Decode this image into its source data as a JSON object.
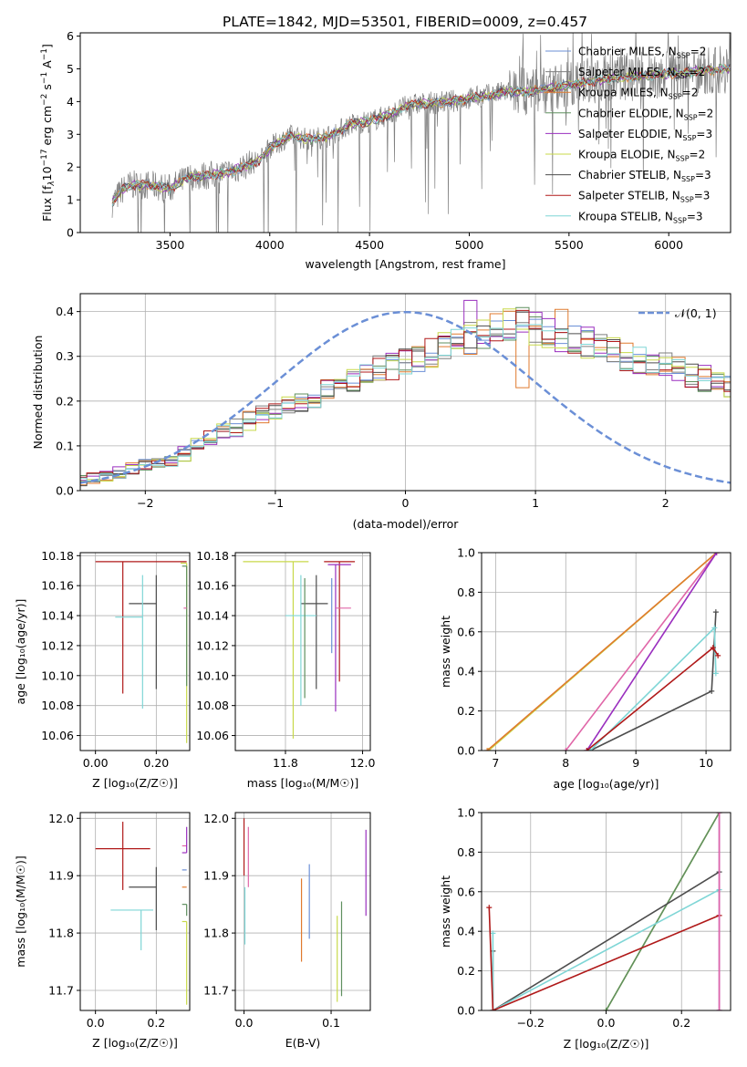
{
  "figure": {
    "title": "PLATE=1842, MJD=53501, FIBERID=0009, z=0.457"
  },
  "colors": {
    "Chabrier MILES": "#6b8fd6",
    "Salpeter MILES": "#7f7f7f",
    "Kroupa MILES": "#e07a2e",
    "Chabrier ELODIE": "#5f8f5f",
    "Salpeter ELODIE": "#9a2fbf",
    "Kroupa ELODIE": "#c8d94a",
    "Chabrier STELIB": "#4d4d4d",
    "Salpeter STELIB": "#b01919",
    "Kroupa STELIB": "#7fd6d6",
    "data": "#808080",
    "pink": "#e066a8"
  },
  "chart_data": [
    {
      "id": "spectrum",
      "type": "line",
      "title": "PLATE=1842, MJD=53501, FIBERID=0009, z=0.457",
      "xlabel": "wavelength [Angstrom, rest frame]",
      "ylabel_parts": [
        "Flux [f",
        "λ",
        "10",
        "−17",
        " erg cm",
        "−2",
        " s",
        "−1",
        " A",
        "−1",
        "]"
      ],
      "xlim": [
        3050,
        6310
      ],
      "ylim": [
        0,
        6.1
      ],
      "xticks": [
        3500,
        4000,
        4500,
        5000,
        5500,
        6000
      ],
      "yticks": [
        0,
        1,
        2,
        3,
        4,
        5,
        6
      ],
      "legend": "top-right",
      "data_start": 3210,
      "data_end": 6310,
      "continuum": [
        [
          3210,
          0.9
        ],
        [
          3260,
          1.3
        ],
        [
          3300,
          1.45
        ],
        [
          3400,
          1.45
        ],
        [
          3500,
          1.35
        ],
        [
          3600,
          1.7
        ],
        [
          3700,
          1.75
        ],
        [
          3800,
          1.85
        ],
        [
          3900,
          2.1
        ],
        [
          3950,
          2.2
        ],
        [
          4000,
          2.6
        ],
        [
          4100,
          2.95
        ],
        [
          4200,
          2.85
        ],
        [
          4300,
          2.95
        ],
        [
          4400,
          3.3
        ],
        [
          4500,
          3.4
        ],
        [
          4600,
          3.6
        ],
        [
          4700,
          3.9
        ],
        [
          4800,
          3.95
        ],
        [
          4900,
          4.0
        ],
        [
          5000,
          4.1
        ],
        [
          5100,
          4.2
        ],
        [
          5200,
          4.3
        ],
        [
          5300,
          4.3
        ],
        [
          5400,
          4.4
        ],
        [
          5500,
          4.5
        ],
        [
          5600,
          4.6
        ],
        [
          5700,
          4.7
        ],
        [
          5800,
          4.75
        ],
        [
          5900,
          4.8
        ],
        [
          6000,
          4.85
        ],
        [
          6100,
          4.9
        ],
        [
          6200,
          4.95
        ],
        [
          6300,
          5.0
        ]
      ],
      "series": [
        {
          "name": "Chabrier MILES",
          "label_sub": "SSP",
          "n": "2"
        },
        {
          "name": "Salpeter MILES",
          "label_sub": "SSP",
          "n": "2"
        },
        {
          "name": "Kroupa MILES",
          "label_sub": "SSP",
          "n": "2"
        },
        {
          "name": "Chabrier ELODIE",
          "label_sub": "SSP",
          "n": "2"
        },
        {
          "name": "Salpeter ELODIE",
          "label_sub": "SSP",
          "n": "3"
        },
        {
          "name": "Kroupa ELODIE",
          "label_sub": "SSP",
          "n": "2"
        },
        {
          "name": "Chabrier STELIB",
          "label_sub": "SSP",
          "n": "3"
        },
        {
          "name": "Salpeter STELIB",
          "label_sub": "SSP",
          "n": "3"
        },
        {
          "name": "Kroupa STELIB",
          "label_sub": "SSP",
          "n": "3"
        }
      ]
    },
    {
      "id": "residuals",
      "type": "histogram",
      "xlabel": "(data-model)/error",
      "ylabel": "Normed distribution",
      "xlim": [
        -2.5,
        2.5
      ],
      "ylim": [
        0,
        0.44
      ],
      "xticks": [
        -2,
        -1,
        0,
        1,
        2
      ],
      "yticks": [
        0,
        0.1,
        0.2,
        0.3,
        0.4
      ],
      "legend": "top-right",
      "reference_curve": {
        "label": "𝒩(0, 1)",
        "mean": 0,
        "sigma": 1
      },
      "bin_width": 0.1,
      "base_profile": [
        0.022,
        0.028,
        0.033,
        0.04,
        0.05,
        0.058,
        0.062,
        0.07,
        0.082,
        0.1,
        0.115,
        0.13,
        0.14,
        0.155,
        0.17,
        0.18,
        0.19,
        0.195,
        0.21,
        0.225,
        0.24,
        0.25,
        0.26,
        0.27,
        0.28,
        0.29,
        0.3,
        0.31,
        0.32,
        0.33,
        0.34,
        0.35,
        0.36,
        0.37,
        0.37,
        0.36,
        0.35,
        0.345,
        0.34,
        0.33,
        0.32,
        0.31,
        0.3,
        0.29,
        0.285,
        0.28,
        0.27,
        0.26,
        0.25,
        0.24,
        0.23,
        0.22,
        0.21,
        0.2,
        0.19,
        0.18,
        0.17,
        0.16,
        0.15,
        0.14,
        0.13,
        0.12,
        0.11,
        0.1,
        0.09,
        0.082,
        0.075,
        0.068,
        0.062,
        0.056,
        0.05,
        0.045,
        0.04,
        0.036
      ]
    },
    {
      "id": "age-vs-Z",
      "type": "errorbar",
      "xlabel": "Z [log₁₀(Z/Z☉)]",
      "ylabel": "age  [log₁₀(age/yr)]",
      "xlim": [
        -0.05,
        0.31
      ],
      "ylim": [
        10.05,
        10.182
      ],
      "xticks": [
        0.0,
        0.2
      ],
      "yticks": [
        10.06,
        10.08,
        10.1,
        10.12,
        10.14,
        10.16,
        10.18
      ],
      "points": [
        {
          "series": "Salpeter STELIB",
          "x": 0.09,
          "y": 10.176,
          "xerr": [
            0.09,
            0.21
          ],
          "yerr": [
            0.088,
            0.0
          ]
        },
        {
          "series": "Chabrier STELIB",
          "x": 0.2,
          "y": 10.148,
          "xerr": [
            0.09,
            0.0
          ],
          "yerr": [
            0.057,
            0.019
          ]
        },
        {
          "series": "Kroupa STELIB",
          "x": 0.155,
          "y": 10.139,
          "xerr": [
            0.09,
            0.0
          ],
          "yerr": [
            0.061,
            0.028
          ]
        },
        {
          "series": "Kroupa ELODIE",
          "x": 0.3,
          "y": 10.175,
          "xerr": [
            0.02,
            0.0
          ],
          "yerr": [
            0.12,
            0.0
          ]
        },
        {
          "series": "Chabrier ELODIE",
          "x": 0.3,
          "y": 10.173,
          "xerr": [
            0.015,
            0.0
          ],
          "yerr": [
            0.08,
            0.0
          ]
        },
        {
          "series": "pink",
          "x": 0.3,
          "y": 10.145,
          "xerr": [
            0.01,
            0.0
          ],
          "yerr": [
            0.0,
            0.0
          ]
        }
      ]
    },
    {
      "id": "age-vs-mass",
      "type": "errorbar",
      "xlabel": "mass [log₁₀(M/M☉)]",
      "ylabel": "",
      "xlim": [
        11.67,
        12.02
      ],
      "ylim": [
        10.05,
        10.182
      ],
      "xticks": [
        11.8,
        12.0
      ],
      "yticks": [
        10.06,
        10.08,
        10.1,
        10.12,
        10.14,
        10.16,
        10.18
      ],
      "points": [
        {
          "series": "Kroupa ELODIE",
          "x": 11.82,
          "y": 10.176,
          "xerr": [
            0.13,
            0.04
          ],
          "yerr": [
            0.118,
            0.0
          ]
        },
        {
          "series": "Salpeter STELIB",
          "x": 11.94,
          "y": 10.176,
          "xerr": [
            0.04,
            0.04
          ],
          "yerr": [
            0.08,
            0.0
          ]
        },
        {
          "series": "Salpeter ELODIE",
          "x": 11.93,
          "y": 10.174,
          "xerr": [
            0.02,
            0.04
          ],
          "yerr": [
            0.098,
            0.0
          ]
        },
        {
          "series": "Chabrier STELIB",
          "x": 11.88,
          "y": 10.148,
          "xerr": [
            0.04,
            0.03
          ],
          "yerr": [
            0.057,
            0.019
          ]
        },
        {
          "series": "Kroupa STELIB",
          "x": 11.84,
          "y": 10.14,
          "xerr": [
            0.04,
            0.04
          ],
          "yerr": [
            0.06,
            0.027
          ]
        },
        {
          "series": "Chabrier MILES",
          "x": 11.92,
          "y": 10.165,
          "xerr": [
            0.0,
            0.0
          ],
          "yerr": [
            0.05,
            0.0
          ]
        },
        {
          "series": "Chabrier ELODIE",
          "x": 11.85,
          "y": 10.165,
          "xerr": [
            0.0,
            0.0
          ],
          "yerr": [
            0.08,
            0.0
          ]
        },
        {
          "series": "pink",
          "x": 11.95,
          "y": 10.145,
          "xerr": [
            0.02,
            0.02
          ],
          "yerr": [
            0.0,
            0.0
          ]
        }
      ]
    },
    {
      "id": "weight-vs-age",
      "type": "line",
      "xlabel": "age  [log₁₀(age/yr)]",
      "ylabel": "mass weight",
      "xlim": [
        6.8,
        10.35
      ],
      "ylim": [
        0,
        1
      ],
      "xticks": [
        7,
        8,
        9,
        10
      ],
      "yticks": [
        0.0,
        0.2,
        0.4,
        0.6,
        0.8,
        1.0
      ],
      "series": [
        {
          "name": "Kroupa ELODIE",
          "points": [
            [
              6.9,
              0
            ],
            [
              10.15,
              1
            ]
          ]
        },
        {
          "name": "Kroupa MILES",
          "points": [
            [
              6.88,
              0
            ],
            [
              10.15,
              1
            ]
          ]
        },
        {
          "name": "pink",
          "points": [
            [
              8.0,
              0
            ],
            [
              10.15,
              1
            ]
          ]
        },
        {
          "name": "Salpeter ELODIE",
          "points": [
            [
              8.3,
              0
            ],
            [
              10.15,
              1
            ]
          ]
        },
        {
          "name": "Chabrier STELIB",
          "points": [
            [
              8.35,
              0
            ],
            [
              10.08,
              0.3
            ],
            [
              10.14,
              0.7
            ]
          ]
        },
        {
          "name": "Kroupa STELIB",
          "points": [
            [
              8.35,
              0
            ],
            [
              10.12,
              0.62
            ],
            [
              10.14,
              0.39
            ]
          ]
        },
        {
          "name": "Salpeter STELIB",
          "points": [
            [
              8.3,
              0
            ],
            [
              10.1,
              0.52
            ],
            [
              10.17,
              0.48
            ]
          ]
        }
      ]
    },
    {
      "id": "mass-vs-Z",
      "type": "errorbar",
      "xlabel": "Z [log₁₀(Z/Z☉)]",
      "ylabel": "mass [log₁₀(M/M☉)]",
      "xlim": [
        -0.05,
        0.31
      ],
      "ylim": [
        11.665,
        12.01
      ],
      "xticks": [
        0.0,
        0.2
      ],
      "yticks": [
        11.7,
        11.8,
        11.9,
        12.0
      ],
      "points": [
        {
          "series": "Salpeter STELIB",
          "x": 0.09,
          "y": 11.947,
          "xerr": [
            0.09,
            0.09
          ],
          "yerr": [
            0.072,
            0.047
          ]
        },
        {
          "series": "Chabrier STELIB",
          "x": 0.2,
          "y": 11.88,
          "xerr": [
            0.09,
            0.0
          ],
          "yerr": [
            0.075,
            0.035
          ]
        },
        {
          "series": "Kroupa STELIB",
          "x": 0.15,
          "y": 11.84,
          "xerr": [
            0.1,
            0.04
          ],
          "yerr": [
            0.07,
            0.0
          ]
        },
        {
          "series": "pink",
          "x": 0.3,
          "y": 11.952,
          "xerr": [
            0.015,
            0.0
          ],
          "yerr": [
            0.0,
            0.0
          ]
        },
        {
          "series": "Salpeter ELODIE",
          "x": 0.3,
          "y": 11.94,
          "xerr": [
            0.015,
            0.0
          ],
          "yerr": [
            0.0,
            0.045
          ]
        },
        {
          "series": "Chabrier MILES",
          "x": 0.3,
          "y": 11.91,
          "xerr": [
            0.015,
            0.0
          ],
          "yerr": [
            0.0,
            0.0
          ]
        },
        {
          "series": "Kroupa MILES",
          "x": 0.3,
          "y": 11.88,
          "xerr": [
            0.015,
            0.0
          ],
          "yerr": [
            0.0,
            0.0
          ]
        },
        {
          "series": "Chabrier ELODIE",
          "x": 0.3,
          "y": 11.85,
          "xerr": [
            0.015,
            0.0
          ],
          "yerr": [
            0.02,
            0.0
          ]
        },
        {
          "series": "Kroupa ELODIE",
          "x": 0.3,
          "y": 11.82,
          "xerr": [
            0.015,
            0.0
          ],
          "yerr": [
            0.145,
            0.0
          ]
        }
      ]
    },
    {
      "id": "mass-vs-ebv",
      "type": "errorbar",
      "xlabel": "E(B-V)",
      "ylabel": "",
      "xlim": [
        -0.01,
        0.145
      ],
      "ylim": [
        11.665,
        12.01
      ],
      "xticks": [
        0.0,
        0.1
      ],
      "yticks": [
        11.7,
        11.8,
        11.9,
        12.0
      ],
      "points": [
        {
          "series": "Salpeter STELIB",
          "x": 0.0,
          "y": 11.95,
          "xerr": [
            0,
            0
          ],
          "yerr": [
            0.05,
            0.05
          ]
        },
        {
          "series": "pink",
          "x": 0.005,
          "y": 11.93,
          "xerr": [
            0,
            0
          ],
          "yerr": [
            0.05,
            0.055
          ]
        },
        {
          "series": "Kroupa STELIB",
          "x": 0.001,
          "y": 11.84,
          "xerr": [
            0,
            0
          ],
          "yerr": [
            0.06,
            0.04
          ]
        },
        {
          "series": "Kroupa MILES",
          "x": 0.066,
          "y": 11.82,
          "xerr": [
            0,
            0
          ],
          "yerr": [
            0.07,
            0.075
          ]
        },
        {
          "series": "Chabrier MILES",
          "x": 0.075,
          "y": 11.86,
          "xerr": [
            0,
            0
          ],
          "yerr": [
            0.07,
            0.06
          ]
        },
        {
          "series": "Kroupa ELODIE",
          "x": 0.107,
          "y": 11.75,
          "xerr": [
            0,
            0
          ],
          "yerr": [
            0.07,
            0.08
          ]
        },
        {
          "series": "Chabrier ELODIE",
          "x": 0.112,
          "y": 11.78,
          "xerr": [
            0,
            0
          ],
          "yerr": [
            0.09,
            0.075
          ]
        },
        {
          "series": "Salpeter ELODIE",
          "x": 0.14,
          "y": 11.9,
          "xerr": [
            0,
            0
          ],
          "yerr": [
            0.07,
            0.08
          ]
        }
      ]
    },
    {
      "id": "weight-vs-Z",
      "type": "line",
      "xlabel": "Z [log₁₀(Z/Z☉)]",
      "ylabel": "mass weight",
      "xlim": [
        -0.33,
        0.33
      ],
      "ylim": [
        0,
        1
      ],
      "xticks": [
        -0.2,
        0.0,
        0.2
      ],
      "yticks": [
        0.0,
        0.2,
        0.4,
        0.6,
        0.8,
        1.0
      ],
      "series": [
        {
          "name": "Kroupa ELODIE",
          "points": [
            [
              0.0,
              0
            ],
            [
              0.3,
              1
            ]
          ]
        },
        {
          "name": "Chabrier ELODIE",
          "points": [
            [
              0.0,
              0
            ],
            [
              0.3,
              1
            ]
          ]
        },
        {
          "name": "Chabrier STELIB",
          "points": [
            [
              -0.3,
              0.3
            ],
            [
              -0.3,
              0
            ],
            [
              0.3,
              0.7
            ]
          ]
        },
        {
          "name": "Kroupa STELIB",
          "points": [
            [
              -0.3,
              0.39
            ],
            [
              -0.3,
              0
            ],
            [
              0.3,
              0.61
            ]
          ]
        },
        {
          "name": "Salpeter STELIB",
          "points": [
            [
              -0.31,
              0.52
            ],
            [
              -0.3,
              0
            ],
            [
              0.3,
              0.48
            ]
          ]
        },
        {
          "name": "Salpeter ELODIE",
          "points": [
            [
              0.3,
              0
            ],
            [
              0.3,
              1
            ]
          ]
        },
        {
          "name": "pink",
          "points": [
            [
              0.3,
              0
            ],
            [
              0.3,
              1
            ]
          ]
        }
      ]
    }
  ]
}
